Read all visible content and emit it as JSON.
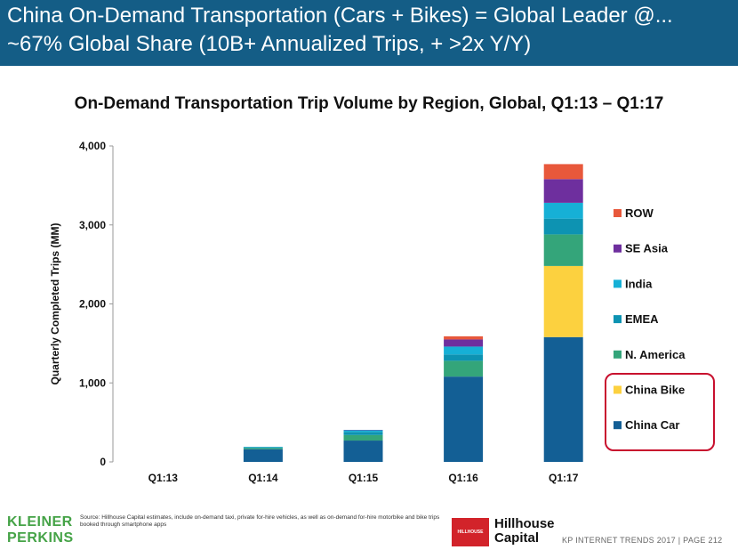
{
  "header": {
    "line1": "China On-Demand Transportation (Cars + Bikes) = Global Leader @...",
    "line2": "~67% Global Share (10B+ Annualized Trips, + >2x Y/Y)"
  },
  "chart_data": {
    "type": "bar",
    "stacked": true,
    "title": "On-Demand Transportation Trip Volume by Region, Global, Q1:13 – Q1:17",
    "xlabel": "",
    "ylabel": "Quarterly Completed Trips (MM)",
    "ylim": [
      0,
      4000
    ],
    "yticks": [
      "0",
      "1,000",
      "2,000",
      "3,000",
      "4,000"
    ],
    "ytick_values": [
      0,
      1000,
      2000,
      3000,
      4000
    ],
    "categories": [
      "Q1:13",
      "Q1:14",
      "Q1:15",
      "Q1:16",
      "Q1:17"
    ],
    "legend_position": "right",
    "series": [
      {
        "name": "China Car",
        "color": "#135f95",
        "values": [
          0,
          160,
          270,
          1080,
          1580
        ]
      },
      {
        "name": "China Bike",
        "color": "#fcd13f",
        "values": [
          0,
          0,
          0,
          0,
          900
        ]
      },
      {
        "name": "N. America",
        "color": "#34a57a",
        "values": [
          0,
          15,
          70,
          200,
          400
        ]
      },
      {
        "name": "EMEA",
        "color": "#0d93b2",
        "values": [
          0,
          10,
          40,
          80,
          200
        ]
      },
      {
        "name": "India",
        "color": "#16b0d6",
        "values": [
          0,
          5,
          20,
          100,
          200
        ]
      },
      {
        "name": "SE Asia",
        "color": "#6e2f9e",
        "values": [
          0,
          0,
          5,
          90,
          300
        ]
      },
      {
        "name": "ROW",
        "color": "#e8583b",
        "values": [
          0,
          0,
          0,
          40,
          190
        ]
      }
    ],
    "legend_order": [
      "ROW",
      "SE Asia",
      "India",
      "EMEA",
      "N. America",
      "China Bike",
      "China Car"
    ],
    "highlighted_legend": [
      "China Bike",
      "China Car"
    ],
    "highlight_color": "#c8102e"
  },
  "footer": {
    "logo_line1": "KLEINER",
    "logo_line2": "PERKINS",
    "source": "Source: Hillhouse Capital estimates, include on-demand taxi, private for-hire vehicles, as well as on-demand for-hire motorbike and bike trips booked through smartphone apps",
    "hillhouse_badge": "HILLHOUSE",
    "hillhouse_line1": "Hillhouse",
    "hillhouse_line2": "Capital",
    "page_ref": "KP INTERNET TRENDS 2017 | PAGE 212"
  }
}
